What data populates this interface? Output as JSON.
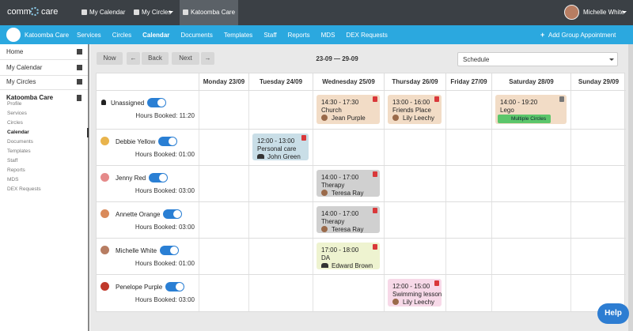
{
  "top_nav": {
    "logo": {
      "left": "comm",
      "right": "care"
    },
    "tabs": [
      {
        "label": "My Calendar",
        "active": false
      },
      {
        "label": "My Circles",
        "active": false
      },
      {
        "label": "Katoomba Care",
        "active": true
      }
    ],
    "user": "Michelle White"
  },
  "org_nav": {
    "org": "Katoomba Care",
    "items": [
      {
        "label": "Services",
        "active": false
      },
      {
        "label": "Circles",
        "active": false
      },
      {
        "label": "Calendar",
        "active": true
      },
      {
        "label": "Documents",
        "active": false
      },
      {
        "label": "Templates",
        "active": false
      },
      {
        "label": "Staff",
        "active": false
      },
      {
        "label": "Reports",
        "active": false
      },
      {
        "label": "MDS",
        "active": false
      },
      {
        "label": "DEX Requests",
        "active": false
      }
    ],
    "action": "Add Group Appointment"
  },
  "sidebar": {
    "items": [
      "Home",
      "My Calendar",
      "My Circles"
    ],
    "org": "Katoomba Care",
    "sub_items": [
      {
        "label": "Profile",
        "active": false
      },
      {
        "label": "Services",
        "active": false
      },
      {
        "label": "Circles",
        "active": false
      },
      {
        "label": "Calendar",
        "active": true
      },
      {
        "label": "Documents",
        "active": false
      },
      {
        "label": "Templates",
        "active": false
      },
      {
        "label": "Staff",
        "active": false
      },
      {
        "label": "Reports",
        "active": false
      },
      {
        "label": "MDS",
        "active": false
      },
      {
        "label": "DEX Requests",
        "active": false
      }
    ]
  },
  "toolbar": {
    "now": "Now",
    "back": "Back",
    "next": "Next",
    "range": "23-09 — 29-09",
    "view": "Schedule"
  },
  "calendar": {
    "days": [
      "Monday 23/09",
      "Tuesday 24/09",
      "Wednesday 25/09",
      "Thursday 26/09",
      "Friday 27/09",
      "Saturday 28/09",
      "Sunday 29/09"
    ],
    "resources": [
      {
        "name": "Unassigned",
        "hours": "Hours Booked: 11:20",
        "avatar_color": null,
        "cells": [
          null,
          null,
          {
            "time": "14:30 - 17:30",
            "title": "Church",
            "person": "Jean Purple",
            "color": "#f2dcc6",
            "icon": "avatar",
            "doc": "#d9383a"
          },
          {
            "time": "13:00 - 16:00",
            "title": "Friends Place",
            "person": "Lily Leechy",
            "color": "#f2dcc6",
            "icon": "avatar",
            "doc": "#d9383a"
          },
          null,
          {
            "time": "14:00 - 19:20",
            "title": "Lego",
            "badge": "Multiple Circles",
            "color": "#f2dcc6",
            "doc": "#777777"
          },
          null
        ]
      },
      {
        "name": "Debbie Yellow",
        "hours": "Hours Booked: 01:00",
        "avatar_color": "#e9b44c",
        "cells": [
          null,
          {
            "time": "12:00 - 13:00",
            "title": "Personal care",
            "person": "John Green",
            "color": "#c9dee7",
            "icon": "group",
            "doc": "#d9383a"
          },
          null,
          null,
          null,
          null,
          null
        ]
      },
      {
        "name": "Jenny Red",
        "hours": "Hours Booked: 03:00",
        "avatar_color": "#e58a8a",
        "cells": [
          null,
          null,
          {
            "time": "14:00 - 17:00",
            "title": "Therapy",
            "person": "Teresa Ray",
            "color": "#d0d0d0",
            "icon": "avatar",
            "doc": "#d9383a"
          },
          null,
          null,
          null,
          null
        ]
      },
      {
        "name": "Annette Orange",
        "hours": "Hours Booked: 03:00",
        "avatar_color": "#d98a5a",
        "cells": [
          null,
          null,
          {
            "time": "14:00 - 17:00",
            "title": "Therapy",
            "person": "Teresa Ray",
            "color": "#d0d0d0",
            "icon": "avatar",
            "doc": "#d9383a"
          },
          null,
          null,
          null,
          null
        ]
      },
      {
        "name": "Michelle White",
        "hours": "Hours Booked: 01:00",
        "avatar_color": "#b77d62",
        "cells": [
          null,
          null,
          {
            "time": "17:00 - 18:00",
            "title": "DA",
            "person": "Edward Brown",
            "color": "#eef3d0",
            "icon": "group",
            "doc": "#d9383a"
          },
          null,
          null,
          null,
          null
        ]
      },
      {
        "name": "Penelope Purple",
        "hours": "Hours Booked: 03:00",
        "avatar_color": "#c0392b",
        "cells": [
          null,
          null,
          null,
          {
            "time": "12:00 - 15:00",
            "title": "Swimming lesson",
            "person": "Lily Leechy",
            "color": "#f7d9e8",
            "icon": "avatar",
            "doc": "#d9383a"
          },
          null,
          null,
          null
        ]
      }
    ]
  },
  "help": "Help"
}
